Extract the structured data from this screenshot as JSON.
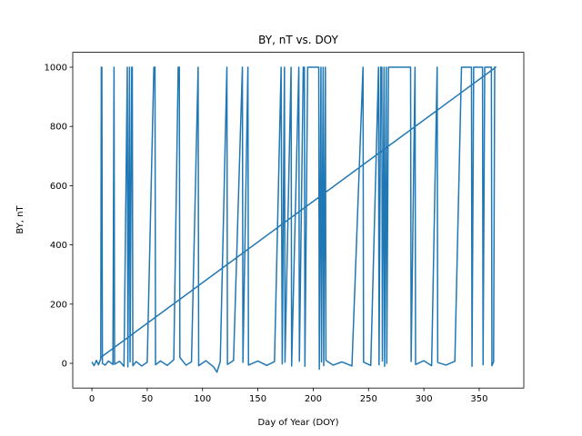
{
  "chart_data": {
    "type": "line",
    "title": "BY, nT vs. DOY",
    "xlabel": "Day of Year (DOY)",
    "ylabel": "BY, nT",
    "x": [
      0,
      2,
      4,
      6,
      8,
      8.5,
      9,
      9.5,
      12,
      15,
      19,
      20,
      20.5,
      25,
      29,
      32,
      32.5,
      34,
      34.5,
      36,
      36.5,
      37,
      40,
      45,
      50,
      56,
      57,
      57.5,
      62,
      68,
      74,
      78,
      79,
      79.5,
      85,
      90,
      96,
      96.5,
      103,
      110,
      113,
      116,
      122,
      122.5,
      128,
      136,
      136.5,
      141,
      141.5,
      150,
      158,
      165,
      171,
      172,
      174,
      174.5,
      180,
      180.5,
      187,
      187.5,
      191,
      192,
      192.5,
      195,
      205,
      205.5,
      207,
      207.5,
      209,
      209.5,
      211,
      211.5,
      218,
      226,
      235,
      245,
      245.5,
      252,
      259,
      259.5,
      261,
      262,
      262.5,
      264,
      264.5,
      266,
      266.5,
      268,
      288,
      288.5,
      292,
      292.5,
      300,
      307,
      312,
      312.5,
      320,
      328,
      334,
      343,
      343.5,
      345,
      353,
      353.5,
      355,
      361,
      361.5,
      363,
      364,
      365,
      8
    ],
    "series": [
      {
        "name": "BY, nT",
        "color": "#1f77b4",
        "values": [
          5,
          -8,
          10,
          -5,
          15,
          1000,
          1000,
          0,
          -6,
          8,
          -4,
          1000,
          -3,
          7,
          -10,
          1000,
          -12,
          1000,
          5,
          1000,
          1000,
          -8,
          6,
          -9,
          4,
          1000,
          1000,
          -5,
          8,
          -7,
          12,
          1000,
          1000,
          20,
          -6,
          5,
          1000,
          -8,
          9,
          -12,
          -30,
          6,
          1000,
          -4,
          10,
          1000,
          3,
          1000,
          -6,
          8,
          -7,
          6,
          1000,
          -2,
          1000,
          4,
          1000,
          -9,
          1000,
          7,
          1000,
          1000,
          -10,
          1000,
          1000,
          -20,
          1000,
          5,
          1000,
          -8,
          1000,
          10,
          -6,
          5,
          -9,
          1000,
          4,
          -7,
          1000,
          -5,
          1000,
          1000,
          8,
          1000,
          -10,
          1000,
          0,
          1000,
          1000,
          6,
          1000,
          -4,
          9,
          -8,
          1000,
          3,
          -6,
          7,
          1000,
          1000,
          -10,
          1000,
          1000,
          -5,
          1000,
          1000,
          -8,
          5,
          1000,
          1000,
          20
        ]
      }
    ],
    "xlim": [
      -17.3,
      390.3
    ],
    "xticks": [
      0,
      50,
      100,
      150,
      200,
      250,
      300,
      350
    ],
    "ylim": [
      -83.4,
      1050.3
    ],
    "yticks": [
      0,
      200,
      400,
      600,
      800,
      1000
    ]
  }
}
